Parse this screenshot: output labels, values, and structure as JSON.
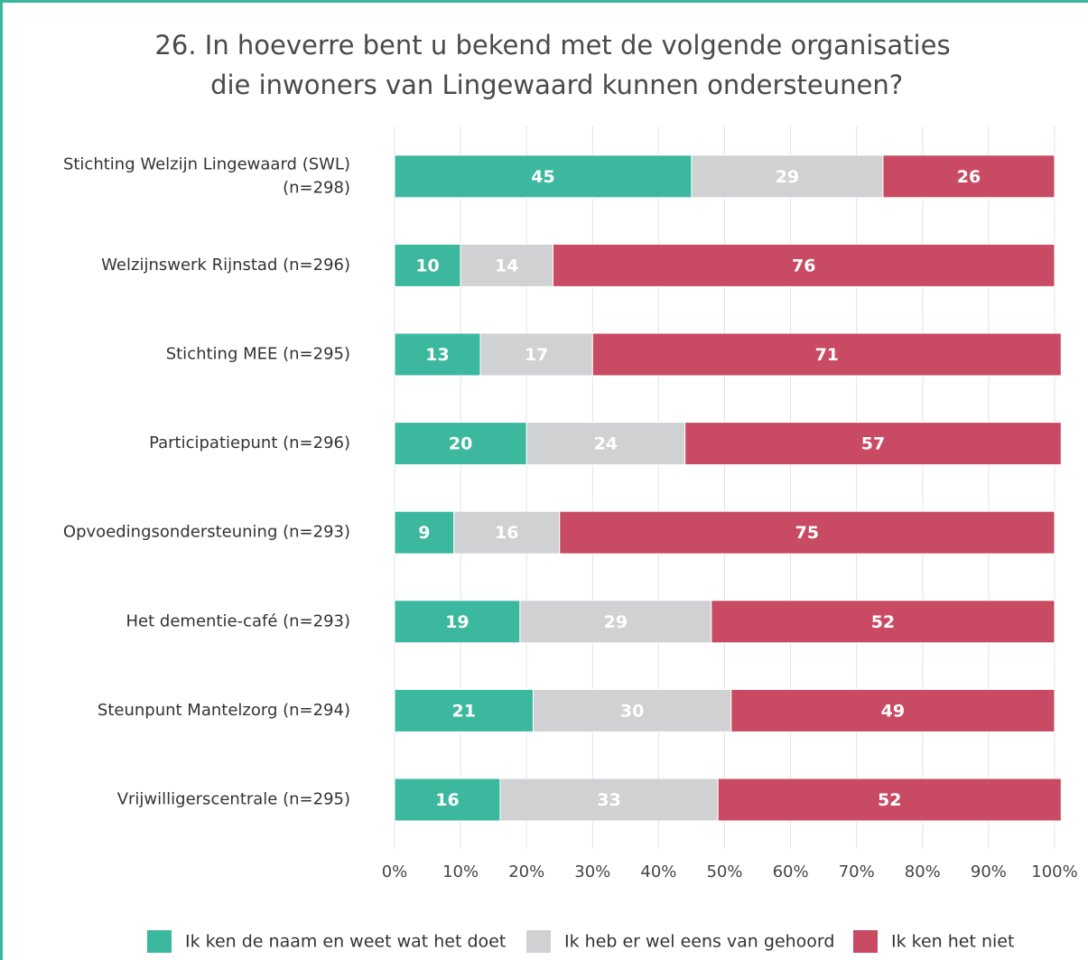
{
  "chart_data": {
    "type": "stacked_barh",
    "title": "26. In hoeverre bent u bekend met de volgende organisaties die inwoners van Lingewaard kunnen ondersteunen?",
    "categories": [
      "Stichting Welzijn Lingewaard (SWL) (n=298)",
      "Welzijnswerk Rijnstad (n=296)",
      "Stichting MEE (n=295)",
      "Participatiepunt (n=296)",
      "Opvoedingsondersteuning (n=293)",
      "Het dementie-café (n=293)",
      "Steunpunt Mantelzorg (n=294)",
      "Vrijwilligerscentrale (n=295)"
    ],
    "series": [
      {
        "name": "Ik ken de naam en weet wat het doet",
        "color": "#3bb89e",
        "values": [
          45,
          10,
          13,
          20,
          9,
          19,
          21,
          16
        ]
      },
      {
        "name": "Ik heb er wel eens van gehoord",
        "color": "#cfd1d2",
        "values": [
          29,
          14,
          17,
          24,
          16,
          29,
          30,
          33
        ]
      },
      {
        "name": "Ik ken het niet",
        "color": "#c94a63",
        "values": [
          26,
          76,
          71,
          57,
          75,
          52,
          49,
          52
        ]
      }
    ],
    "xlim": [
      0,
      100
    ],
    "xticks": [
      {
        "value": 0,
        "label": "0%"
      },
      {
        "value": 10,
        "label": "10%"
      },
      {
        "value": 20,
        "label": "20%"
      },
      {
        "value": 30,
        "label": "30%"
      },
      {
        "value": 40,
        "label": "40%"
      },
      {
        "value": 50,
        "label": "50%"
      },
      {
        "value": 60,
        "label": "60%"
      },
      {
        "value": 70,
        "label": "70%"
      },
      {
        "value": 80,
        "label": "80%"
      },
      {
        "value": 90,
        "label": "90%"
      },
      {
        "value": 100,
        "label": "100%"
      }
    ],
    "grid": true,
    "legend": "bottom"
  }
}
